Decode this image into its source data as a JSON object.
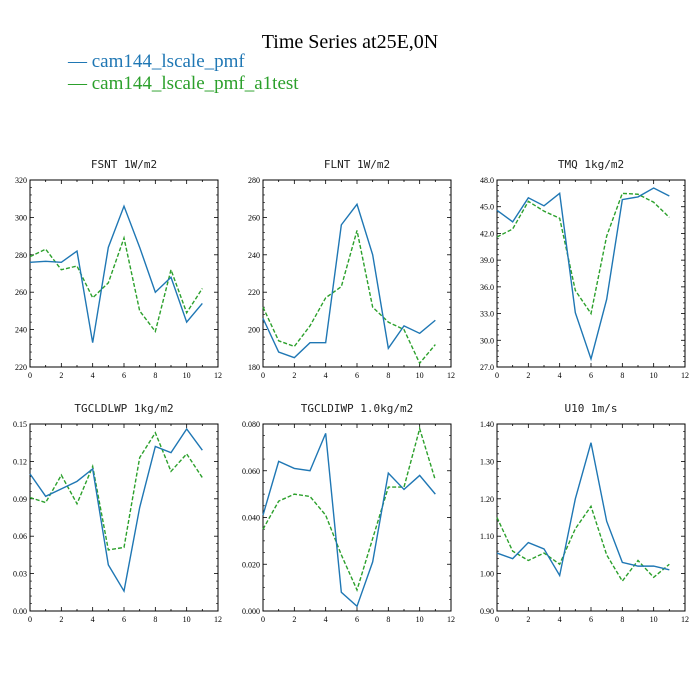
{
  "figure": {
    "title": "Time Series at25E,0N",
    "legend": [
      {
        "label": "— cam144_lscale_pmf",
        "color": "#1f77b4"
      },
      {
        "label": "— cam144_lscale_pmf_a1test",
        "color": "#2ca02c"
      }
    ]
  },
  "chart_data": [
    {
      "type": "line",
      "title": "FSNT   1W/m2",
      "x": [
        0,
        1,
        2,
        3,
        4,
        5,
        6,
        7,
        8,
        9,
        10,
        11
      ],
      "xlim": [
        0,
        12
      ],
      "xticks": [
        "0",
        "2",
        "4",
        "6",
        "8",
        "10",
        "12"
      ],
      "ylim": [
        220,
        320
      ],
      "yticks": [
        "220",
        "240",
        "260",
        "280",
        "300",
        "320"
      ],
      "series": [
        {
          "name": "cam144_lscale_pmf",
          "color": "#1f77b4",
          "dash": "",
          "values": [
            276,
            276.5,
            276,
            282,
            233,
            284,
            306,
            284,
            260,
            268,
            244,
            254
          ]
        },
        {
          "name": "cam144_lscale_pmf_a1test",
          "color": "#2ca02c",
          "dash": "4,2",
          "values": [
            279,
            283,
            272,
            274,
            257,
            265,
            289,
            250,
            239,
            272,
            249,
            262
          ]
        }
      ]
    },
    {
      "type": "line",
      "title": "FLNT   1W/m2",
      "x": [
        0,
        1,
        2,
        3,
        4,
        5,
        6,
        7,
        8,
        9,
        10,
        11
      ],
      "xlim": [
        0,
        12
      ],
      "xticks": [
        "0",
        "2",
        "4",
        "6",
        "8",
        "10",
        "12"
      ],
      "ylim": [
        180,
        280
      ],
      "yticks": [
        "180",
        "200",
        "220",
        "240",
        "260",
        "280"
      ],
      "series": [
        {
          "name": "cam144_lscale_pmf",
          "color": "#1f77b4",
          "dash": "",
          "values": [
            206,
            188,
            185,
            193,
            193,
            256,
            267,
            240,
            190,
            202,
            198,
            205
          ]
        },
        {
          "name": "cam144_lscale_pmf_a1test",
          "color": "#2ca02c",
          "dash": "4,2",
          "values": [
            212,
            194,
            191,
            202,
            217,
            223,
            253,
            212,
            204,
            200,
            182,
            192
          ]
        }
      ]
    },
    {
      "type": "line",
      "title": "TMQ   1kg/m2",
      "x": [
        0,
        1,
        2,
        3,
        4,
        5,
        6,
        7,
        8,
        9,
        10,
        11
      ],
      "xlim": [
        0,
        12
      ],
      "xticks": [
        "0",
        "2",
        "4",
        "6",
        "8",
        "10",
        "12"
      ],
      "ylim": [
        27,
        48
      ],
      "yticks": [
        "27.0",
        "30.0",
        "33.0",
        "36.0",
        "39.0",
        "42.0",
        "45.0",
        "48.0"
      ],
      "series": [
        {
          "name": "cam144_lscale_pmf",
          "color": "#1f77b4",
          "dash": "",
          "values": [
            44.6,
            43.3,
            46,
            45.1,
            46.5,
            33.1,
            27.9,
            34.6,
            45.8,
            46.1,
            47.1,
            46.2
          ]
        },
        {
          "name": "cam144_lscale_pmf_a1test",
          "color": "#2ca02c",
          "dash": "4,2",
          "values": [
            41.6,
            42.5,
            45.6,
            44.5,
            43.7,
            35.6,
            33,
            41.7,
            46.5,
            46.4,
            45.5,
            43.8
          ]
        }
      ]
    },
    {
      "type": "line",
      "title": "TGCLDLWP   1kg/m2",
      "x": [
        0,
        1,
        2,
        3,
        4,
        5,
        6,
        7,
        8,
        9,
        10,
        11
      ],
      "xlim": [
        0,
        12
      ],
      "xticks": [
        "0",
        "2",
        "4",
        "6",
        "8",
        "10",
        "12"
      ],
      "ylim": [
        0,
        0.15
      ],
      "yticks": [
        "0.00",
        "0.03",
        "0.06",
        "0.09",
        "0.12",
        "0.15"
      ],
      "series": [
        {
          "name": "cam144_lscale_pmf",
          "color": "#1f77b4",
          "dash": "",
          "values": [
            0.11,
            0.092,
            0.098,
            0.104,
            0.114,
            0.037,
            0.016,
            0.083,
            0.132,
            0.127,
            0.146,
            0.129
          ]
        },
        {
          "name": "cam144_lscale_pmf_a1test",
          "color": "#2ca02c",
          "dash": "4,2",
          "values": [
            0.091,
            0.087,
            0.109,
            0.086,
            0.116,
            0.049,
            0.051,
            0.123,
            0.143,
            0.112,
            0.126,
            0.107
          ]
        }
      ]
    },
    {
      "type": "line",
      "title": "TGCLDIWP   1.0kg/m2",
      "x": [
        0,
        1,
        2,
        3,
        4,
        5,
        6,
        7,
        8,
        9,
        10,
        11
      ],
      "xlim": [
        0,
        12
      ],
      "xticks": [
        "0",
        "2",
        "4",
        "6",
        "8",
        "10",
        "12"
      ],
      "ylim": [
        0,
        0.08
      ],
      "yticks": [
        "0.000",
        "0.020",
        "0.040",
        "0.060",
        "0.080"
      ],
      "series": [
        {
          "name": "cam144_lscale_pmf",
          "color": "#1f77b4",
          "dash": "",
          "values": [
            0.041,
            0.064,
            0.061,
            0.06,
            0.076,
            0.008,
            0.002,
            0.021,
            0.059,
            0.052,
            0.058,
            0.05
          ]
        },
        {
          "name": "cam144_lscale_pmf_a1test",
          "color": "#2ca02c",
          "dash": "4,2",
          "values": [
            0.035,
            0.047,
            0.05,
            0.049,
            0.041,
            0.024,
            0.009,
            0.031,
            0.053,
            0.053,
            0.078,
            0.056
          ]
        }
      ]
    },
    {
      "type": "line",
      "title": "U10   1m/s",
      "x": [
        0,
        1,
        2,
        3,
        4,
        5,
        6,
        7,
        8,
        9,
        10,
        11
      ],
      "xlim": [
        0,
        12
      ],
      "xticks": [
        "0",
        "2",
        "4",
        "6",
        "8",
        "10",
        "12"
      ],
      "ylim": [
        0.9,
        1.4
      ],
      "yticks": [
        "0.90",
        "1.00",
        "1.10",
        "1.20",
        "1.30",
        "1.40"
      ],
      "series": [
        {
          "name": "cam144_lscale_pmf",
          "color": "#1f77b4",
          "dash": "",
          "values": [
            1.055,
            1.04,
            1.083,
            1.066,
            0.995,
            1.2,
            1.35,
            1.14,
            1.03,
            1.02,
            1.02,
            1.01
          ]
        },
        {
          "name": "cam144_lscale_pmf_a1test",
          "color": "#2ca02c",
          "dash": "4,2",
          "values": [
            1.15,
            1.06,
            1.035,
            1.055,
            1.025,
            1.12,
            1.18,
            1.05,
            0.98,
            1.035,
            0.99,
            1.025
          ]
        }
      ]
    }
  ]
}
